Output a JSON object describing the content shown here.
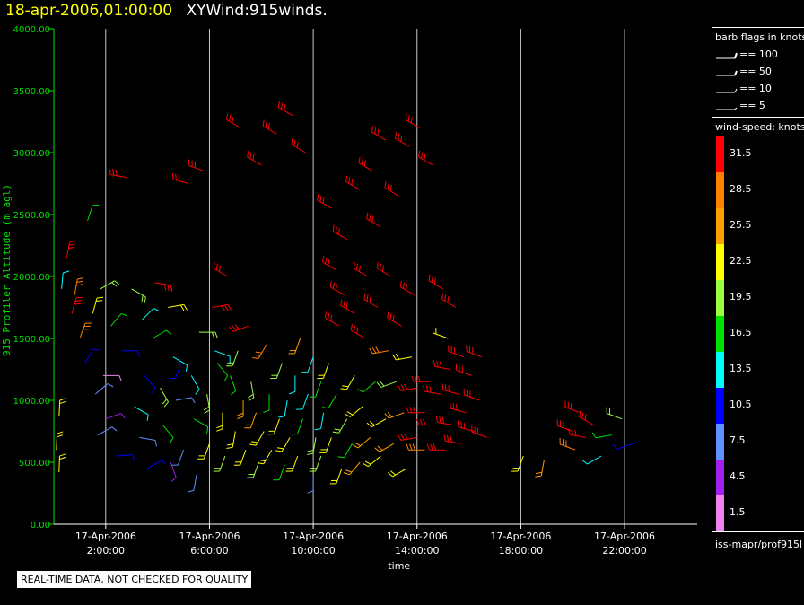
{
  "header": {
    "date": "18-apr-2006,01:00:00",
    "title": "XYWind:915winds."
  },
  "legend": {
    "barb_title": "barb flags in knots",
    "barbs": [
      {
        "label": "== 100"
      },
      {
        "label": "== 50"
      },
      {
        "label": "== 10"
      },
      {
        "label": "== 5"
      }
    ],
    "speed_title": "wind-speed: knots",
    "scale": [
      {
        "label": "31.5",
        "color": "#ff0000"
      },
      {
        "label": "28.5",
        "color": "#ff8000"
      },
      {
        "label": "25.5",
        "color": "#ffa000"
      },
      {
        "label": "22.5",
        "color": "#ffff00"
      },
      {
        "label": "19.5",
        "color": "#a0ff40"
      },
      {
        "label": "16.5",
        "color": "#00e000"
      },
      {
        "label": "13.5",
        "color": "#00ffff"
      },
      {
        "label": "10.5",
        "color": "#0000ff"
      },
      {
        "label": "7.5",
        "color": "#6090ff"
      },
      {
        "label": "4.5",
        "color": "#a020f0"
      },
      {
        "label": "1.5",
        "color": "#ee82ee"
      }
    ],
    "source": "iss-mapr/prof915l"
  },
  "notice": "REAL-TIME DATA, NOT CHECKED FOR QUALITY",
  "chart_data": {
    "type": "scatter",
    "xlabel": "time",
    "ylabel": "915 Profiler Altitude (m agl)",
    "xlim_hours": [
      0,
      24.8
    ],
    "ylim": [
      0,
      4000
    ],
    "x_ticks": [
      {
        "hour": 2,
        "date": "17-Apr-2006",
        "time": "2:00:00"
      },
      {
        "hour": 6,
        "date": "17-Apr-2006",
        "time": "6:00:00"
      },
      {
        "hour": 10,
        "date": "17-Apr-2006",
        "time": "10:00:00"
      },
      {
        "hour": 14,
        "date": "17-Apr-2006",
        "time": "14:00:00"
      },
      {
        "hour": 18,
        "date": "17-Apr-2006",
        "time": "18:00:00"
      },
      {
        "hour": 22,
        "date": "17-Apr-2006",
        "time": "22:00:00"
      }
    ],
    "y_ticks": [
      "0.00",
      "500.00",
      "1000.00",
      "1500.00",
      "2000.00",
      "2500.00",
      "3000.00",
      "3500.00",
      "4000.00"
    ],
    "y_tick_values": [
      0,
      500,
      1000,
      1500,
      2000,
      2500,
      3000,
      3500,
      4000
    ],
    "grid": true,
    "colors": {
      "axis": "#00e000",
      "grid": "#c8c8c8",
      "background": "#000000"
    },
    "series": [
      {
        "values": [
          [
            0.1,
            600,
            2,
            3
          ],
          [
            0.2,
            870,
            3,
            3
          ],
          [
            0.2,
            420,
            2,
            3
          ],
          [
            0.3,
            1900,
            5,
            6
          ],
          [
            0.5,
            2150,
            10,
            0
          ],
          [
            0.7,
            1700,
            15,
            0
          ],
          [
            0.8,
            1850,
            10,
            1
          ],
          [
            1.0,
            1500,
            20,
            1
          ],
          [
            1.2,
            1300,
            30,
            7
          ],
          [
            1.3,
            2450,
            18,
            5
          ],
          [
            1.5,
            1700,
            15,
            3
          ],
          [
            1.6,
            1050,
            50,
            8
          ],
          [
            1.7,
            720,
            60,
            8
          ],
          [
            1.8,
            1900,
            60,
            4
          ],
          [
            1.9,
            1200,
            90,
            10
          ],
          [
            2.0,
            850,
            70,
            9
          ],
          [
            2.2,
            1600,
            40,
            5
          ],
          [
            2.4,
            550,
            85,
            7
          ],
          [
            2.6,
            1400,
            90,
            7
          ],
          [
            2.8,
            2800,
            280,
            0
          ],
          [
            3.0,
            1900,
            120,
            4
          ],
          [
            3.1,
            950,
            120,
            6
          ],
          [
            3.3,
            700,
            100,
            8
          ],
          [
            3.4,
            1650,
            45,
            6
          ],
          [
            3.5,
            1200,
            140,
            7
          ],
          [
            3.6,
            450,
            60,
            7
          ],
          [
            3.8,
            1500,
            60,
            5
          ],
          [
            3.9,
            1950,
            100,
            0
          ],
          [
            4.1,
            1100,
            150,
            4
          ],
          [
            4.2,
            800,
            140,
            5
          ],
          [
            4.4,
            1750,
            80,
            3
          ],
          [
            4.5,
            500,
            160,
            9
          ],
          [
            4.6,
            1350,
            120,
            6
          ],
          [
            4.7,
            1000,
            80,
            8
          ],
          [
            4.9,
            1300,
            200,
            7
          ],
          [
            5.0,
            600,
            200,
            8
          ],
          [
            5.2,
            2750,
            285,
            0
          ],
          [
            5.3,
            1200,
            150,
            6
          ],
          [
            5.4,
            850,
            120,
            5
          ],
          [
            5.5,
            400,
            190,
            8
          ],
          [
            5.6,
            1550,
            90,
            4
          ],
          [
            5.8,
            2850,
            290,
            0
          ],
          [
            5.9,
            1050,
            170,
            4
          ],
          [
            6.0,
            650,
            200,
            3
          ],
          [
            6.1,
            1750,
            80,
            0
          ],
          [
            6.2,
            1400,
            110,
            6
          ],
          [
            6.3,
            1300,
            140,
            5
          ],
          [
            6.5,
            900,
            180,
            3
          ],
          [
            6.6,
            550,
            200,
            4
          ],
          [
            6.7,
            2000,
            300,
            0
          ],
          [
            6.8,
            1200,
            160,
            5
          ],
          [
            7.0,
            750,
            190,
            3
          ],
          [
            7.1,
            1400,
            200,
            4
          ],
          [
            7.2,
            3200,
            300,
            0
          ],
          [
            7.3,
            1000,
            180,
            2
          ],
          [
            7.4,
            600,
            200,
            3
          ],
          [
            7.5,
            1600,
            250,
            0
          ],
          [
            7.6,
            1150,
            170,
            4
          ],
          [
            7.8,
            900,
            200,
            2
          ],
          [
            7.9,
            500,
            200,
            4
          ],
          [
            8.0,
            2900,
            300,
            0
          ],
          [
            8.1,
            750,
            210,
            3
          ],
          [
            8.2,
            1450,
            210,
            1
          ],
          [
            8.3,
            1050,
            180,
            5
          ],
          [
            8.4,
            600,
            210,
            3
          ],
          [
            8.6,
            3150,
            300,
            0
          ],
          [
            8.7,
            850,
            200,
            3
          ],
          [
            8.8,
            1300,
            200,
            4
          ],
          [
            8.9,
            480,
            200,
            5
          ],
          [
            9.0,
            1000,
            190,
            6
          ],
          [
            9.1,
            700,
            210,
            3
          ],
          [
            9.2,
            3300,
            300,
            0
          ],
          [
            9.3,
            1200,
            180,
            6
          ],
          [
            9.4,
            550,
            200,
            3
          ],
          [
            9.5,
            1500,
            200,
            2
          ],
          [
            9.6,
            850,
            200,
            5
          ],
          [
            9.7,
            3000,
            300,
            0
          ],
          [
            9.8,
            1050,
            200,
            6
          ],
          [
            10.0,
            400,
            180,
            8
          ],
          [
            10.0,
            1350,
            200,
            6
          ],
          [
            10.1,
            700,
            190,
            4
          ],
          [
            10.3,
            1150,
            200,
            5
          ],
          [
            10.3,
            550,
            200,
            4
          ],
          [
            10.4,
            900,
            190,
            6
          ],
          [
            10.6,
            1300,
            200,
            3
          ],
          [
            10.7,
            2550,
            300,
            0
          ],
          [
            10.7,
            700,
            200,
            3
          ],
          [
            10.9,
            1050,
            210,
            5
          ],
          [
            10.9,
            2050,
            300,
            0
          ],
          [
            11.0,
            1600,
            300,
            0
          ],
          [
            11.1,
            450,
            200,
            3
          ],
          [
            11.2,
            1850,
            300,
            0
          ],
          [
            11.3,
            850,
            210,
            4
          ],
          [
            11.3,
            2300,
            300,
            0
          ],
          [
            11.5,
            650,
            210,
            5
          ],
          [
            11.6,
            1700,
            300,
            0
          ],
          [
            11.6,
            1200,
            210,
            3
          ],
          [
            11.8,
            500,
            220,
            2
          ],
          [
            11.8,
            2700,
            300,
            0
          ],
          [
            11.9,
            950,
            230,
            3
          ],
          [
            12.0,
            1500,
            300,
            0
          ],
          [
            12.1,
            2000,
            300,
            0
          ],
          [
            12.2,
            700,
            230,
            2
          ],
          [
            12.3,
            2850,
            300,
            0
          ],
          [
            12.4,
            1150,
            230,
            5
          ],
          [
            12.5,
            1750,
            300,
            0
          ],
          [
            12.6,
            550,
            230,
            3
          ],
          [
            12.6,
            2400,
            300,
            0
          ],
          [
            12.8,
            850,
            240,
            3
          ],
          [
            12.8,
            3100,
            300,
            0
          ],
          [
            12.9,
            1400,
            260,
            1
          ],
          [
            13.0,
            2000,
            300,
            0
          ],
          [
            13.1,
            650,
            240,
            2
          ],
          [
            13.2,
            1150,
            250,
            4
          ],
          [
            13.3,
            2650,
            300,
            0
          ],
          [
            13.4,
            1600,
            300,
            0
          ],
          [
            13.5,
            900,
            250,
            2
          ],
          [
            13.6,
            450,
            240,
            3
          ],
          [
            13.7,
            3050,
            300,
            0
          ],
          [
            13.8,
            1350,
            260,
            3
          ],
          [
            13.9,
            1850,
            300,
            0
          ],
          [
            14.0,
            700,
            260,
            0
          ],
          [
            14.0,
            1100,
            260,
            0
          ],
          [
            14.1,
            3200,
            300,
            0
          ],
          [
            14.3,
            900,
            270,
            0
          ],
          [
            14.3,
            600,
            270,
            1
          ],
          [
            14.5,
            1150,
            270,
            0
          ],
          [
            14.6,
            2900,
            300,
            0
          ],
          [
            14.7,
            800,
            270,
            0
          ],
          [
            14.9,
            1050,
            280,
            0
          ],
          [
            15.0,
            1900,
            300,
            0
          ],
          [
            15.1,
            600,
            270,
            0
          ],
          [
            15.2,
            1500,
            290,
            3
          ],
          [
            15.3,
            1250,
            280,
            0
          ],
          [
            15.4,
            800,
            280,
            0
          ],
          [
            15.5,
            1750,
            300,
            0
          ],
          [
            15.6,
            1050,
            285,
            0
          ],
          [
            15.7,
            650,
            280,
            0
          ],
          [
            15.8,
            1350,
            290,
            0
          ],
          [
            15.9,
            900,
            285,
            0
          ],
          [
            16.1,
            1200,
            290,
            0
          ],
          [
            16.2,
            750,
            285,
            0
          ],
          [
            16.4,
            1000,
            290,
            0
          ],
          [
            16.5,
            1350,
            290,
            0
          ],
          [
            16.7,
            700,
            290,
            0
          ],
          [
            18.1,
            550,
            200,
            3
          ],
          [
            18.9,
            520,
            190,
            2
          ],
          [
            20.0,
            750,
            290,
            0
          ],
          [
            20.1,
            600,
            290,
            1
          ],
          [
            20.3,
            900,
            290,
            0
          ],
          [
            20.5,
            700,
            280,
            0
          ],
          [
            20.8,
            800,
            300,
            0
          ],
          [
            21.1,
            550,
            240,
            6
          ],
          [
            21.5,
            720,
            260,
            5
          ],
          [
            21.9,
            850,
            290,
            4
          ],
          [
            22.3,
            650,
            250,
            7
          ]
        ]
      }
    ]
  }
}
